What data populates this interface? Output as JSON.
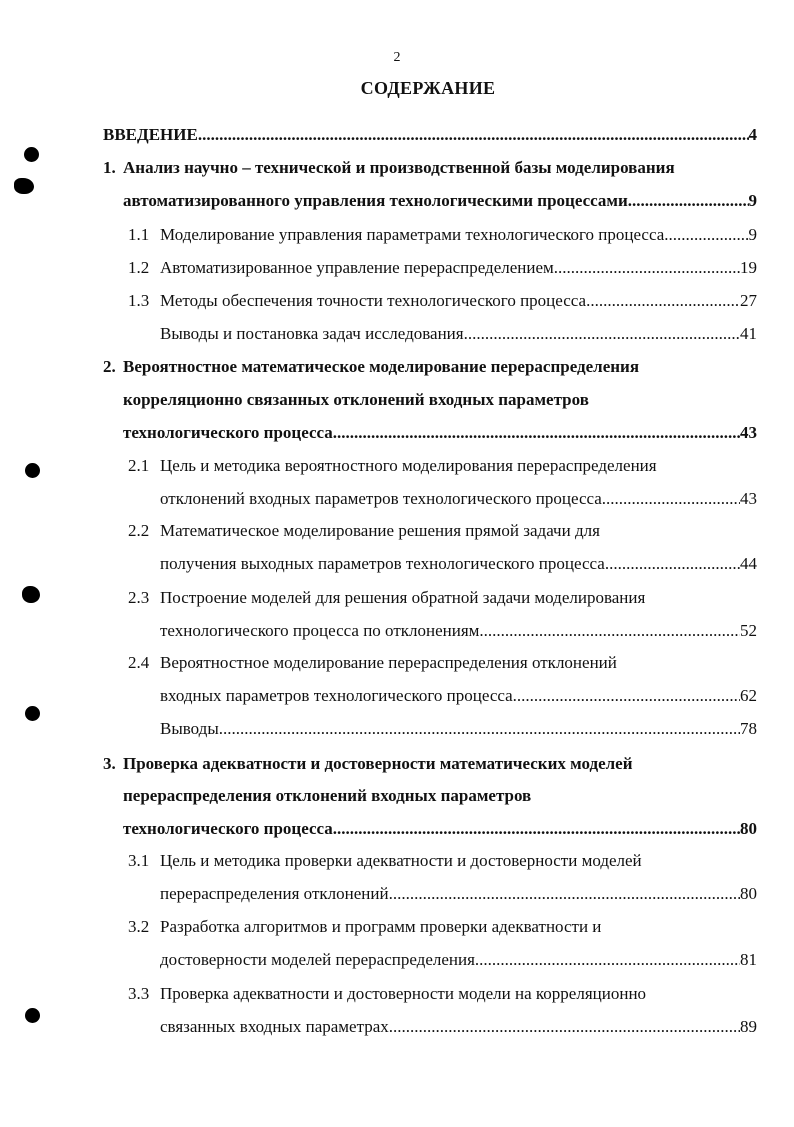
{
  "page_number": "2",
  "title": "СОДЕРЖАНИЕ",
  "lines": [
    {
      "num": "",
      "text": "ВВЕДЕНИЕ",
      "page": "4",
      "bold": true,
      "lvl": 0
    },
    {
      "num": "1.",
      "text": "Анализ научно – технической и производственной базы моделирования",
      "page": "",
      "bold": true,
      "lvl": 1
    },
    {
      "num": "",
      "text": "автоматизированного управления технологическими процессами",
      "page": "9",
      "bold": true,
      "lvl": 2
    },
    {
      "num": "1.1",
      "text": "Моделирование управления параметрами технологического процесса",
      "page": "9",
      "bold": false,
      "lvl": 3
    },
    {
      "num": "1.2",
      "text": "Автоматизированное управление перераспределением",
      "page": "19",
      "bold": false,
      "lvl": 3
    },
    {
      "num": "1.3",
      "text": "Методы обеспечения точности технологического процесса",
      "page": "27",
      "bold": false,
      "lvl": 3
    },
    {
      "num": "",
      "text": "Выводы и постановка задач исследования",
      "page": "41",
      "bold": false,
      "lvl": 4
    },
    {
      "num": "2.",
      "text": "Вероятностное математическое моделирование перераспределения",
      "page": "",
      "bold": true,
      "lvl": 1
    },
    {
      "num": "",
      "text": "корреляционно связанных отклонений входных параметров",
      "page": "",
      "bold": true,
      "lvl": 2
    },
    {
      "num": "",
      "text": "технологического процесса",
      "page": "43",
      "bold": true,
      "lvl": 2
    },
    {
      "num": "2.1",
      "text": "Цель и методика вероятностного моделирования перераспределения",
      "page": "",
      "bold": false,
      "lvl": 3
    },
    {
      "num": "",
      "text": "отклонений входных параметров технологического процесса",
      "page": "43",
      "bold": false,
      "lvl": 4
    },
    {
      "num": "2.2",
      "text": "Математическое моделирование решения прямой задачи для",
      "page": "",
      "bold": false,
      "lvl": 3
    },
    {
      "num": "",
      "text": "получения выходных параметров технологического процесса",
      "page": "44",
      "bold": false,
      "lvl": 4
    },
    {
      "num": "2.3",
      "text": "Построение моделей для решения обратной задачи моделирования",
      "page": "",
      "bold": false,
      "lvl": 3
    },
    {
      "num": "",
      "text": "технологического процесса по отклонениям",
      "page": "52",
      "bold": false,
      "lvl": 4
    },
    {
      "num": "2.4",
      "text": "Вероятностное моделирование перераспределения отклонений",
      "page": "",
      "bold": false,
      "lvl": 3
    },
    {
      "num": "",
      "text": "входных параметров технологического процесса",
      "page": "62",
      "bold": false,
      "lvl": 4
    },
    {
      "num": "",
      "text": "Выводы",
      "page": "78",
      "bold": false,
      "lvl": 4
    },
    {
      "num": "3.",
      "text": "Проверка адекватности и достоверности математических моделей",
      "page": "",
      "bold": true,
      "lvl": 1
    },
    {
      "num": "",
      "text": "перераспределения  отклонений входных параметров",
      "page": "",
      "bold": true,
      "lvl": 2
    },
    {
      "num": "",
      "text": "технологического процесса",
      "page": "80",
      "bold": true,
      "lvl": 2
    },
    {
      "num": "3.1",
      "text": "Цель и методика проверки адекватности и достоверности моделей",
      "page": "",
      "bold": false,
      "lvl": 3
    },
    {
      "num": "",
      "text": "перераспределения отклонений",
      "page": "80",
      "bold": false,
      "lvl": 4
    },
    {
      "num": "3.2",
      "text": "Разработка алгоритмов и программ проверки адекватности и",
      "page": "",
      "bold": false,
      "lvl": 3
    },
    {
      "num": "",
      "text": "достоверности моделей перераспределения",
      "page": "81",
      "bold": false,
      "lvl": 4
    },
    {
      "num": "3.3",
      "text": "Проверка адекватности и достоверности модели на корреляционно",
      "page": "",
      "bold": false,
      "lvl": 3
    },
    {
      "num": "",
      "text": "связанных входных параметрах",
      "page": "89",
      "bold": false,
      "lvl": 4
    }
  ]
}
